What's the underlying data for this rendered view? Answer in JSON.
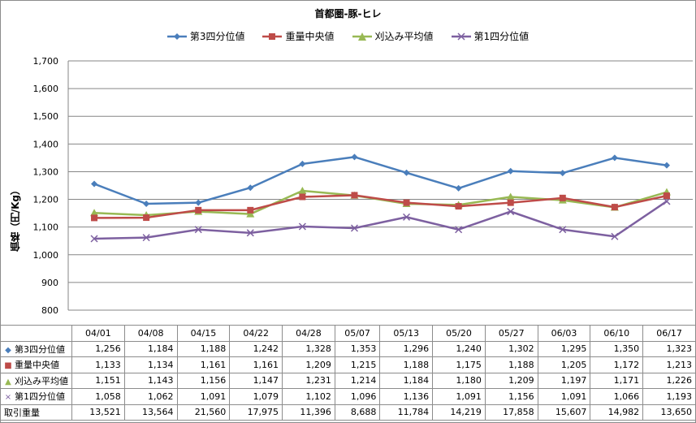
{
  "chart_data": {
    "type": "line",
    "title": "首都圏-豚-ヒレ",
    "ylabel": "価格（円/Kg）",
    "ylim": [
      800,
      1700
    ],
    "yticks": [
      800,
      900,
      1000,
      1100,
      1200,
      1300,
      1400,
      1500,
      1600,
      1700
    ],
    "ytick_labels": [
      "800",
      "900",
      "1,000",
      "1,100",
      "1,200",
      "1,300",
      "1,400",
      "1,500",
      "1,600",
      "1,700"
    ],
    "legend_position": "top",
    "grid": true,
    "categories": [
      "04/01",
      "04/08",
      "04/15",
      "04/22",
      "04/28",
      "05/07",
      "05/13",
      "05/20",
      "05/27",
      "06/03",
      "06/10",
      "06/17"
    ],
    "series": [
      {
        "name": "第3四分位値",
        "color": "#4a7ebb",
        "marker": "diamond",
        "marker_glyph": "◆",
        "values": [
          1256,
          1184,
          1188,
          1242,
          1328,
          1353,
          1296,
          1240,
          1302,
          1295,
          1350,
          1323
        ],
        "labels": [
          "1,256",
          "1,184",
          "1,188",
          "1,242",
          "1,328",
          "1,353",
          "1,296",
          "1,240",
          "1,302",
          "1,295",
          "1,350",
          "1,323"
        ]
      },
      {
        "name": "重量中央値",
        "color": "#be4b48",
        "marker": "square",
        "marker_glyph": "■",
        "values": [
          1133,
          1134,
          1161,
          1161,
          1209,
          1215,
          1188,
          1175,
          1188,
          1205,
          1172,
          1213
        ],
        "labels": [
          "1,133",
          "1,134",
          "1,161",
          "1,161",
          "1,209",
          "1,215",
          "1,188",
          "1,175",
          "1,188",
          "1,205",
          "1,172",
          "1,213"
        ]
      },
      {
        "name": "刈込み平均値",
        "color": "#98b954",
        "marker": "triangle",
        "marker_glyph": "▲",
        "values": [
          1151,
          1143,
          1156,
          1147,
          1231,
          1214,
          1184,
          1180,
          1209,
          1197,
          1171,
          1226
        ],
        "labels": [
          "1,151",
          "1,143",
          "1,156",
          "1,147",
          "1,231",
          "1,214",
          "1,184",
          "1,180",
          "1,209",
          "1,197",
          "1,171",
          "1,226"
        ]
      },
      {
        "name": "第1四分位値",
        "color": "#7d60a0",
        "marker": "x",
        "marker_glyph": "×",
        "values": [
          1058,
          1062,
          1091,
          1079,
          1102,
          1096,
          1136,
          1091,
          1156,
          1091,
          1066,
          1193
        ],
        "labels": [
          "1,058",
          "1,062",
          "1,091",
          "1,079",
          "1,102",
          "1,096",
          "1,136",
          "1,091",
          "1,156",
          "1,091",
          "1,066",
          "1,193"
        ]
      }
    ],
    "extra_rows": [
      {
        "name": "取引重量",
        "labels": [
          "13,521",
          "13,564",
          "21,560",
          "17,975",
          "11,396",
          "8,688",
          "11,784",
          "14,219",
          "17,858",
          "15,607",
          "14,982",
          "13,650"
        ]
      }
    ]
  }
}
